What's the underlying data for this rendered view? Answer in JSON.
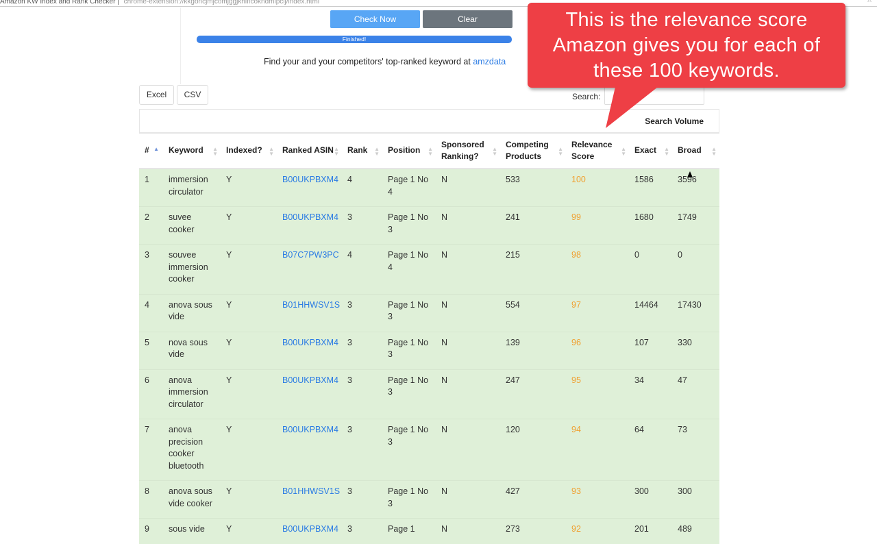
{
  "browser": {
    "title": "Amazon KW Index and Rank Checker",
    "url": "chrome-extension://kkgoncjmjcomjggjkhiffcokndmipclj/index.html"
  },
  "controls": {
    "check_now": "Check Now",
    "clear": "Clear",
    "progress_text": "Finished!",
    "progress_percent": 100,
    "find_text": "Find your and your competitors' top-ranked keyword at ",
    "find_link": "amzdata"
  },
  "export": {
    "excel": "Excel",
    "csv": "CSV"
  },
  "search": {
    "label": "Search:",
    "value": ""
  },
  "table": {
    "group_header": "Search Volume",
    "columns": [
      "#",
      "Keyword",
      "Indexed?",
      "Ranked ASIN",
      "Rank",
      "Position",
      "Sponsored Ranking?",
      "Competing Products",
      "Relevance Score",
      "Exact",
      "Broad"
    ],
    "rows": [
      [
        "1",
        "immersion circulator",
        "Y",
        "B00UKPBXM4",
        "4",
        "Page 1 No 4",
        "N",
        "533",
        "100",
        "1586",
        "3596"
      ],
      [
        "2",
        "suvee cooker",
        "Y",
        "B00UKPBXM4",
        "3",
        "Page 1 No 3",
        "N",
        "241",
        "99",
        "1680",
        "1749"
      ],
      [
        "3",
        "souvee immersion cooker",
        "Y",
        "B07C7PW3PC",
        "4",
        "Page 1 No 4",
        "N",
        "215",
        "98",
        "0",
        "0"
      ],
      [
        "4",
        "anova sous vide",
        "Y",
        "B01HHWSV1S",
        "3",
        "Page 1 No 3",
        "N",
        "554",
        "97",
        "14464",
        "17430"
      ],
      [
        "5",
        "nova sous vide",
        "Y",
        "B00UKPBXM4",
        "3",
        "Page 1 No 3",
        "N",
        "139",
        "96",
        "107",
        "330"
      ],
      [
        "6",
        "anova immersion circulator",
        "Y",
        "B00UKPBXM4",
        "3",
        "Page 1 No 3",
        "N",
        "247",
        "95",
        "34",
        "47"
      ],
      [
        "7",
        "anova precision cooker bluetooth",
        "Y",
        "B00UKPBXM4",
        "3",
        "Page 1 No 3",
        "N",
        "120",
        "94",
        "64",
        "73"
      ],
      [
        "8",
        "anova sous vide cooker",
        "Y",
        "B01HHWSV1S",
        "3",
        "Page 1 No 3",
        "N",
        "427",
        "93",
        "300",
        "300"
      ],
      [
        "9",
        "sous vide",
        "Y",
        "B00UKPBXM4",
        "3",
        "Page 1",
        "N",
        "273",
        "92",
        "201",
        "489"
      ]
    ]
  },
  "callout": {
    "text": "This is the relevance score Amazon gives you for each of these 100 keywords."
  }
}
